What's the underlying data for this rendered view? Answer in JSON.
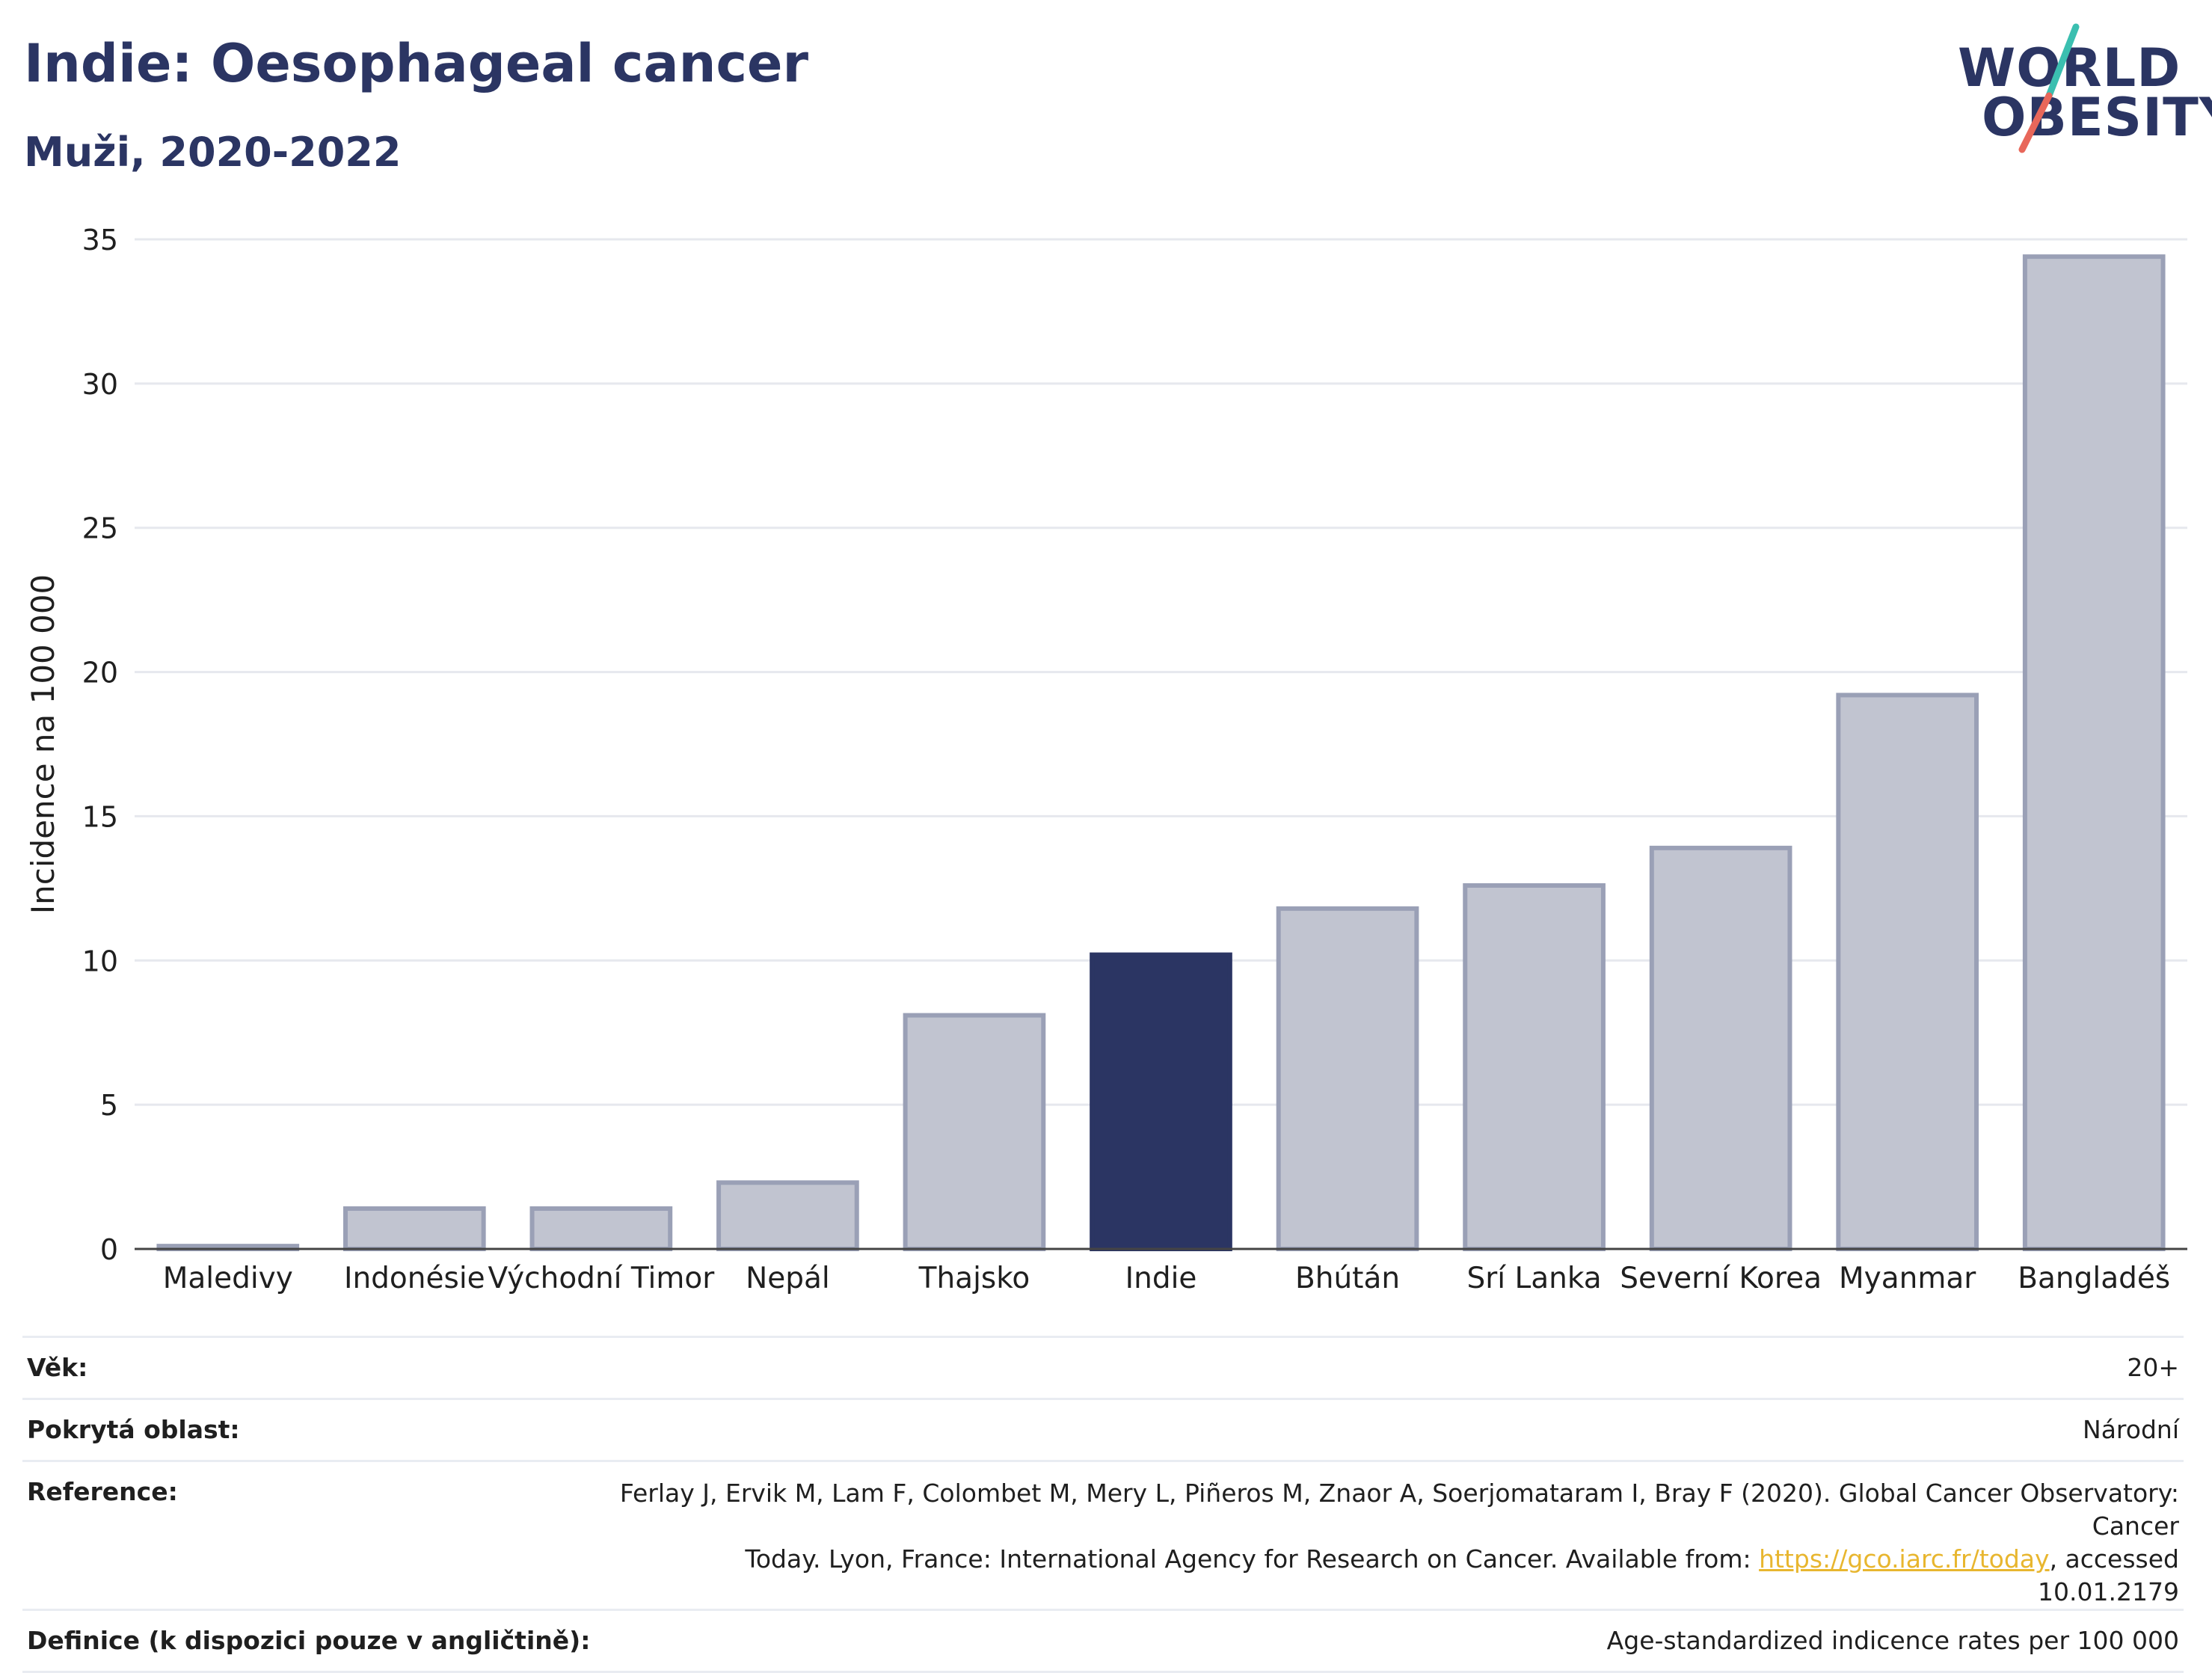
{
  "header": {
    "title": "Indie: Oesophageal cancer",
    "subtitle": "Muži, 2020-2022"
  },
  "logo": {
    "line1": "WORLD",
    "line2": "OBESITY",
    "brand_color": "#2b3563",
    "accent_teal": "#3bbfb0",
    "accent_red": "#e8675a"
  },
  "colors": {
    "highlight_bar": "#2b3563",
    "other_bar_fill": "#c1c4d0",
    "other_bar_stroke": "#9aa0b6",
    "grid": "#e6e8ee",
    "axis": "#444444"
  },
  "chart_data": {
    "type": "bar",
    "categories": [
      "Maledivy",
      "Indonésie",
      "Východní Timor",
      "Nepál",
      "Thajsko",
      "Indie",
      "Bhútán",
      "Srí Lanka",
      "Severní Korea",
      "Myanmar",
      "Bangladéš"
    ],
    "values": [
      0.1,
      1.4,
      1.4,
      2.3,
      8.1,
      10.2,
      11.8,
      12.6,
      13.9,
      19.2,
      34.4
    ],
    "highlight": "Indie",
    "title": "Indie: Oesophageal cancer",
    "subtitle": "Muži, 2020-2022",
    "xlabel": "",
    "ylabel": "Incidence na 100 000",
    "ylim": [
      0,
      35
    ],
    "yticks": [
      0,
      5,
      10,
      15,
      20,
      25,
      30,
      35
    ],
    "grid": true,
    "legend": "none"
  },
  "meta": [
    {
      "key": "Věk:",
      "value": "20+"
    },
    {
      "key": "Pokrytá oblast:",
      "value": "Národní"
    },
    {
      "key": "Reference:",
      "value_line1": "Ferlay J, Ervik M, Lam F, Colombet M, Mery L, Piñeros M, Znaor A, Soerjomataram I, Bray F (2020). Global Cancer Observatory: Cancer",
      "value_line2_pre": "Today. Lyon, France: International Agency for Research on Cancer. Available from: ",
      "link": "https://gco.iarc.fr/today",
      "value_line2_post": ", accessed 10.01.2179"
    },
    {
      "key": "Definice (k dispozici pouze v angličtině):",
      "value": "Age-standardized indicence rates per 100 000"
    }
  ]
}
